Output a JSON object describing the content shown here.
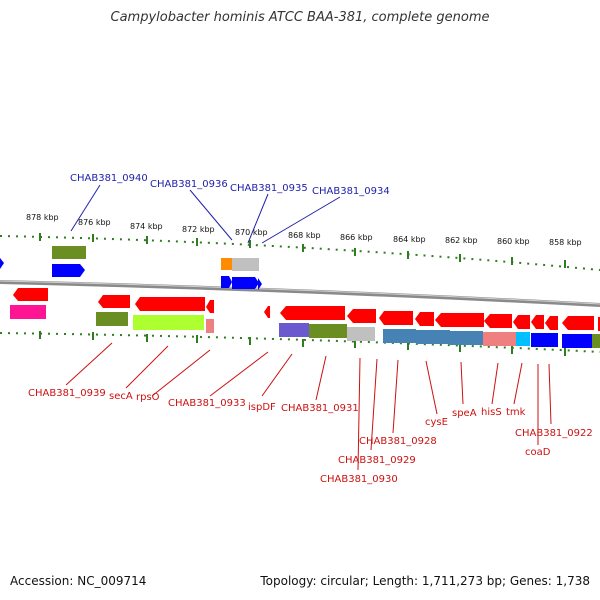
{
  "header": {
    "title": "Campylobacter hominis ATCC BAA-381, complete genome"
  },
  "footer": {
    "accession": "Accession: NC_009714",
    "topology": "Topology: circular; Length: 1,711,273 bp; Genes: 1,738"
  },
  "colors": {
    "backbone": "#8a8a8a",
    "tick": "#2e7d1e",
    "forward_strand_label": "#2222aa",
    "reverse_strand_label": "#cc1111",
    "gene_red": "#ff0000",
    "gene_blue": "#0000ff",
    "olive": "#6b8e23",
    "light_green": "#adff2f",
    "pink": "#ff1493",
    "slate": "#6a5acd",
    "steel": "#4682b4",
    "salmon": "#f08080",
    "cyan": "#00bfff",
    "orange": "#ff8c00",
    "gray": "#c0c0c0"
  },
  "scale": {
    "ticks": [
      "878 kbp",
      "876 kbp",
      "874 kbp",
      "872 kbp",
      "870 kbp",
      "868 kbp",
      "866 kbp",
      "864 kbp",
      "862 kbp",
      "860 kbp",
      "858 kbp"
    ]
  },
  "forward_labels": [
    "CHAB381_0940",
    "CHAB381_0936",
    "CHAB381_0935",
    "CHAB381_0934"
  ],
  "reverse_labels": [
    "CHAB381_0939",
    "secA",
    "rpsO",
    "CHAB381_0933",
    "ispDF",
    "CHAB381_0931",
    "CHAB381_0930",
    "CHAB381_0929",
    "CHAB381_0928",
    "cysE",
    "speA",
    "hisS",
    "tmk",
    "coaD",
    "CHAB381_0922"
  ]
}
